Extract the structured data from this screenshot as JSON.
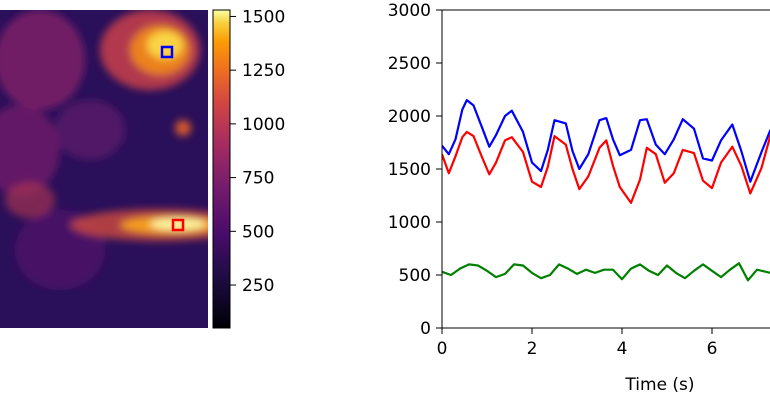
{
  "chart_data": [
    {
      "type": "heatmap",
      "title": "",
      "colormap": "inferno",
      "colorbar": {
        "ticks": [
          250,
          500,
          750,
          1000,
          1250,
          1500
        ],
        "tick_labels": [
          "250",
          "500",
          "750",
          "1000",
          "1250",
          "1500"
        ],
        "range": [
          50,
          1530
        ]
      },
      "rois": [
        {
          "color": "#0000ff",
          "location": "upper-right bright region"
        },
        {
          "color": "#ff0000",
          "location": "lower-right bright streak"
        }
      ]
    },
    {
      "type": "line",
      "title": "",
      "xlabel": "Time (s)",
      "ylabel": "",
      "xlim": [
        0,
        7.3
      ],
      "ylim": [
        0,
        3000
      ],
      "xticks": [
        0,
        2,
        4,
        6
      ],
      "xtick_labels": [
        "0",
        "2",
        "4",
        "6"
      ],
      "yticks": [
        0,
        500,
        1000,
        1500,
        2000,
        2500,
        3000
      ],
      "ytick_labels": [
        "0",
        "500",
        "1000",
        "1500",
        "2000",
        "2500",
        "3000"
      ],
      "grid": false,
      "series": [
        {
          "color": "#0000ff",
          "x": [
            0,
            0.15,
            0.3,
            0.45,
            0.55,
            0.7,
            0.9,
            1.05,
            1.2,
            1.4,
            1.55,
            1.8,
            2.0,
            2.2,
            2.35,
            2.5,
            2.75,
            2.9,
            3.05,
            3.25,
            3.5,
            3.65,
            3.8,
            3.95,
            4.2,
            4.4,
            4.55,
            4.75,
            4.95,
            5.15,
            5.35,
            5.6,
            5.8,
            6.0,
            6.2,
            6.45,
            6.65,
            6.85,
            7.1,
            7.3
          ],
          "values": [
            1720,
            1640,
            1780,
            2060,
            2150,
            2100,
            1880,
            1710,
            1820,
            2000,
            2050,
            1850,
            1560,
            1480,
            1680,
            1960,
            1930,
            1670,
            1500,
            1640,
            1960,
            1980,
            1780,
            1630,
            1680,
            1960,
            1970,
            1730,
            1640,
            1780,
            1970,
            1880,
            1600,
            1580,
            1770,
            1920,
            1670,
            1380,
            1660,
            1870
          ]
        },
        {
          "color": "#ff0000",
          "x": [
            0,
            0.15,
            0.3,
            0.45,
            0.55,
            0.7,
            0.9,
            1.05,
            1.2,
            1.4,
            1.55,
            1.8,
            2.0,
            2.2,
            2.35,
            2.5,
            2.75,
            2.9,
            3.05,
            3.25,
            3.5,
            3.65,
            3.8,
            3.95,
            4.2,
            4.4,
            4.55,
            4.75,
            4.95,
            5.15,
            5.35,
            5.6,
            5.8,
            6.0,
            6.2,
            6.45,
            6.65,
            6.85,
            7.1,
            7.3
          ],
          "values": [
            1640,
            1460,
            1620,
            1800,
            1850,
            1810,
            1600,
            1450,
            1560,
            1770,
            1800,
            1660,
            1380,
            1330,
            1520,
            1810,
            1730,
            1500,
            1310,
            1430,
            1700,
            1770,
            1530,
            1330,
            1180,
            1400,
            1700,
            1640,
            1370,
            1460,
            1680,
            1650,
            1390,
            1320,
            1560,
            1710,
            1530,
            1270,
            1510,
            1820
          ]
        },
        {
          "color": "#008000",
          "x": [
            0,
            0.2,
            0.4,
            0.6,
            0.8,
            1.0,
            1.2,
            1.4,
            1.6,
            1.8,
            2.0,
            2.2,
            2.4,
            2.6,
            2.8,
            3.0,
            3.2,
            3.4,
            3.6,
            3.8,
            4.0,
            4.2,
            4.4,
            4.6,
            4.8,
            5.0,
            5.2,
            5.4,
            5.6,
            5.8,
            6.0,
            6.2,
            6.4,
            6.6,
            6.8,
            7.0,
            7.3
          ],
          "values": [
            530,
            500,
            560,
            600,
            590,
            540,
            480,
            510,
            600,
            590,
            520,
            470,
            500,
            600,
            560,
            510,
            550,
            520,
            550,
            550,
            460,
            560,
            600,
            540,
            500,
            590,
            520,
            470,
            540,
            600,
            540,
            480,
            550,
            610,
            450,
            550,
            520
          ]
        }
      ]
    }
  ]
}
